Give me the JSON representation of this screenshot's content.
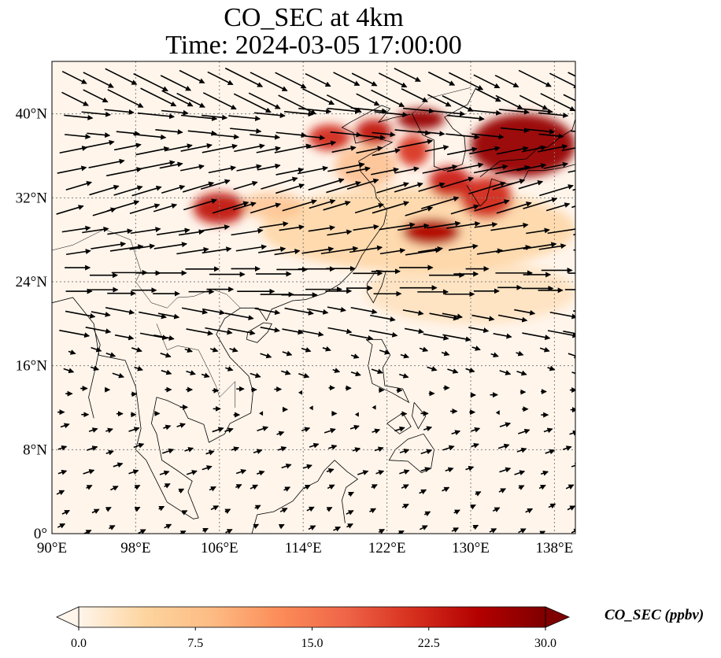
{
  "chart_data": {
    "type": "heatmap",
    "title": "CO_SEC at 4km",
    "subtitle": "Time: 2024-03-05 17:00:00",
    "xlabel": "",
    "ylabel": "",
    "xlim": [
      90,
      140
    ],
    "ylim": [
      0,
      45
    ],
    "x_ticks": [
      90,
      98,
      106,
      114,
      122,
      130,
      138
    ],
    "x_tick_labels": [
      "90°E",
      "98°E",
      "106°E",
      "114°E",
      "122°E",
      "130°E",
      "138°E"
    ],
    "y_ticks": [
      0,
      8,
      16,
      24,
      32,
      40
    ],
    "y_tick_labels": [
      "0°",
      "8°N",
      "16°N",
      "24°N",
      "32°N",
      "40°N"
    ],
    "grid": true,
    "colorbar": {
      "label": "CO_SEC (ppbv)",
      "min": 0,
      "max": 30,
      "ticks": [
        0,
        7.5,
        15,
        22.5,
        30
      ],
      "tick_labels": [
        "0.0",
        "7.5",
        "15.0",
        "22.5",
        "30.0"
      ],
      "extend": "both",
      "colormap": [
        "#fff5eb",
        "#fdd49e",
        "#fdbb84",
        "#fc8d59",
        "#ef6548",
        "#d7301f",
        "#b30000",
        "#7f0000"
      ]
    },
    "concentration_regions": [
      {
        "lon": [
          103.5,
          108.5
        ],
        "lat": [
          29.5,
          32.5
        ],
        "value": 24
      },
      {
        "lon": [
          108,
          114
        ],
        "lat": [
          30,
          32.5
        ],
        "value": 8
      },
      {
        "lon": [
          114.5,
          118.5
        ],
        "lat": [
          36.5,
          39
        ],
        "value": 22
      },
      {
        "lon": [
          119,
          122.5
        ],
        "lat": [
          37,
          39.5
        ],
        "value": 24
      },
      {
        "lon": [
          123,
          127.5
        ],
        "lat": [
          38.5,
          40.5
        ],
        "value": 28
      },
      {
        "lon": [
          123,
          126
        ],
        "lat": [
          35,
          38
        ],
        "value": 21
      },
      {
        "lon": [
          117,
          123
        ],
        "lat": [
          33,
          37
        ],
        "value": 9
      },
      {
        "lon": [
          126,
          130
        ],
        "lat": [
          32,
          35
        ],
        "value": 23
      },
      {
        "lon": [
          130,
          140
        ],
        "lat": [
          34,
          40
        ],
        "value": 28
      },
      {
        "lon": [
          123.5,
          129
        ],
        "lat": [
          27.5,
          30
        ],
        "value": 26
      },
      {
        "lon": [
          129,
          134
        ],
        "lat": [
          30,
          34
        ],
        "value": 22
      },
      {
        "lon": [
          110,
          140
        ],
        "lat": [
          25,
          33
        ],
        "value": 5
      },
      {
        "lon": [
          120,
          140
        ],
        "lat": [
          20,
          26
        ],
        "value": 3
      }
    ],
    "wind_vectors": {
      "lon_range": [
        90,
        140
      ],
      "lat_range": [
        0,
        45
      ],
      "description_rows": [
        {
          "lat": 44,
          "u": 1.0,
          "v": -0.5
        },
        {
          "lat": 40,
          "u": 1.0,
          "v": -0.1
        },
        {
          "lat": 36,
          "u": 1.0,
          "v": 0.2
        },
        {
          "lat": 32,
          "u": 1.0,
          "v": 0.3
        },
        {
          "lat": 28,
          "u": 1.0,
          "v": 0.15
        },
        {
          "lat": 24,
          "u": 1.0,
          "v": 0.0
        },
        {
          "lat": 20,
          "u": 0.8,
          "v": -0.15
        },
        {
          "lat": 16,
          "u": 0.3,
          "v": -0.1
        },
        {
          "lat": 12,
          "u": 0.2,
          "v": 0.0
        },
        {
          "lat": 8,
          "u": 0.3,
          "v": 0.1
        },
        {
          "lat": 4,
          "u": 0.2,
          "v": 0.1
        }
      ]
    }
  }
}
